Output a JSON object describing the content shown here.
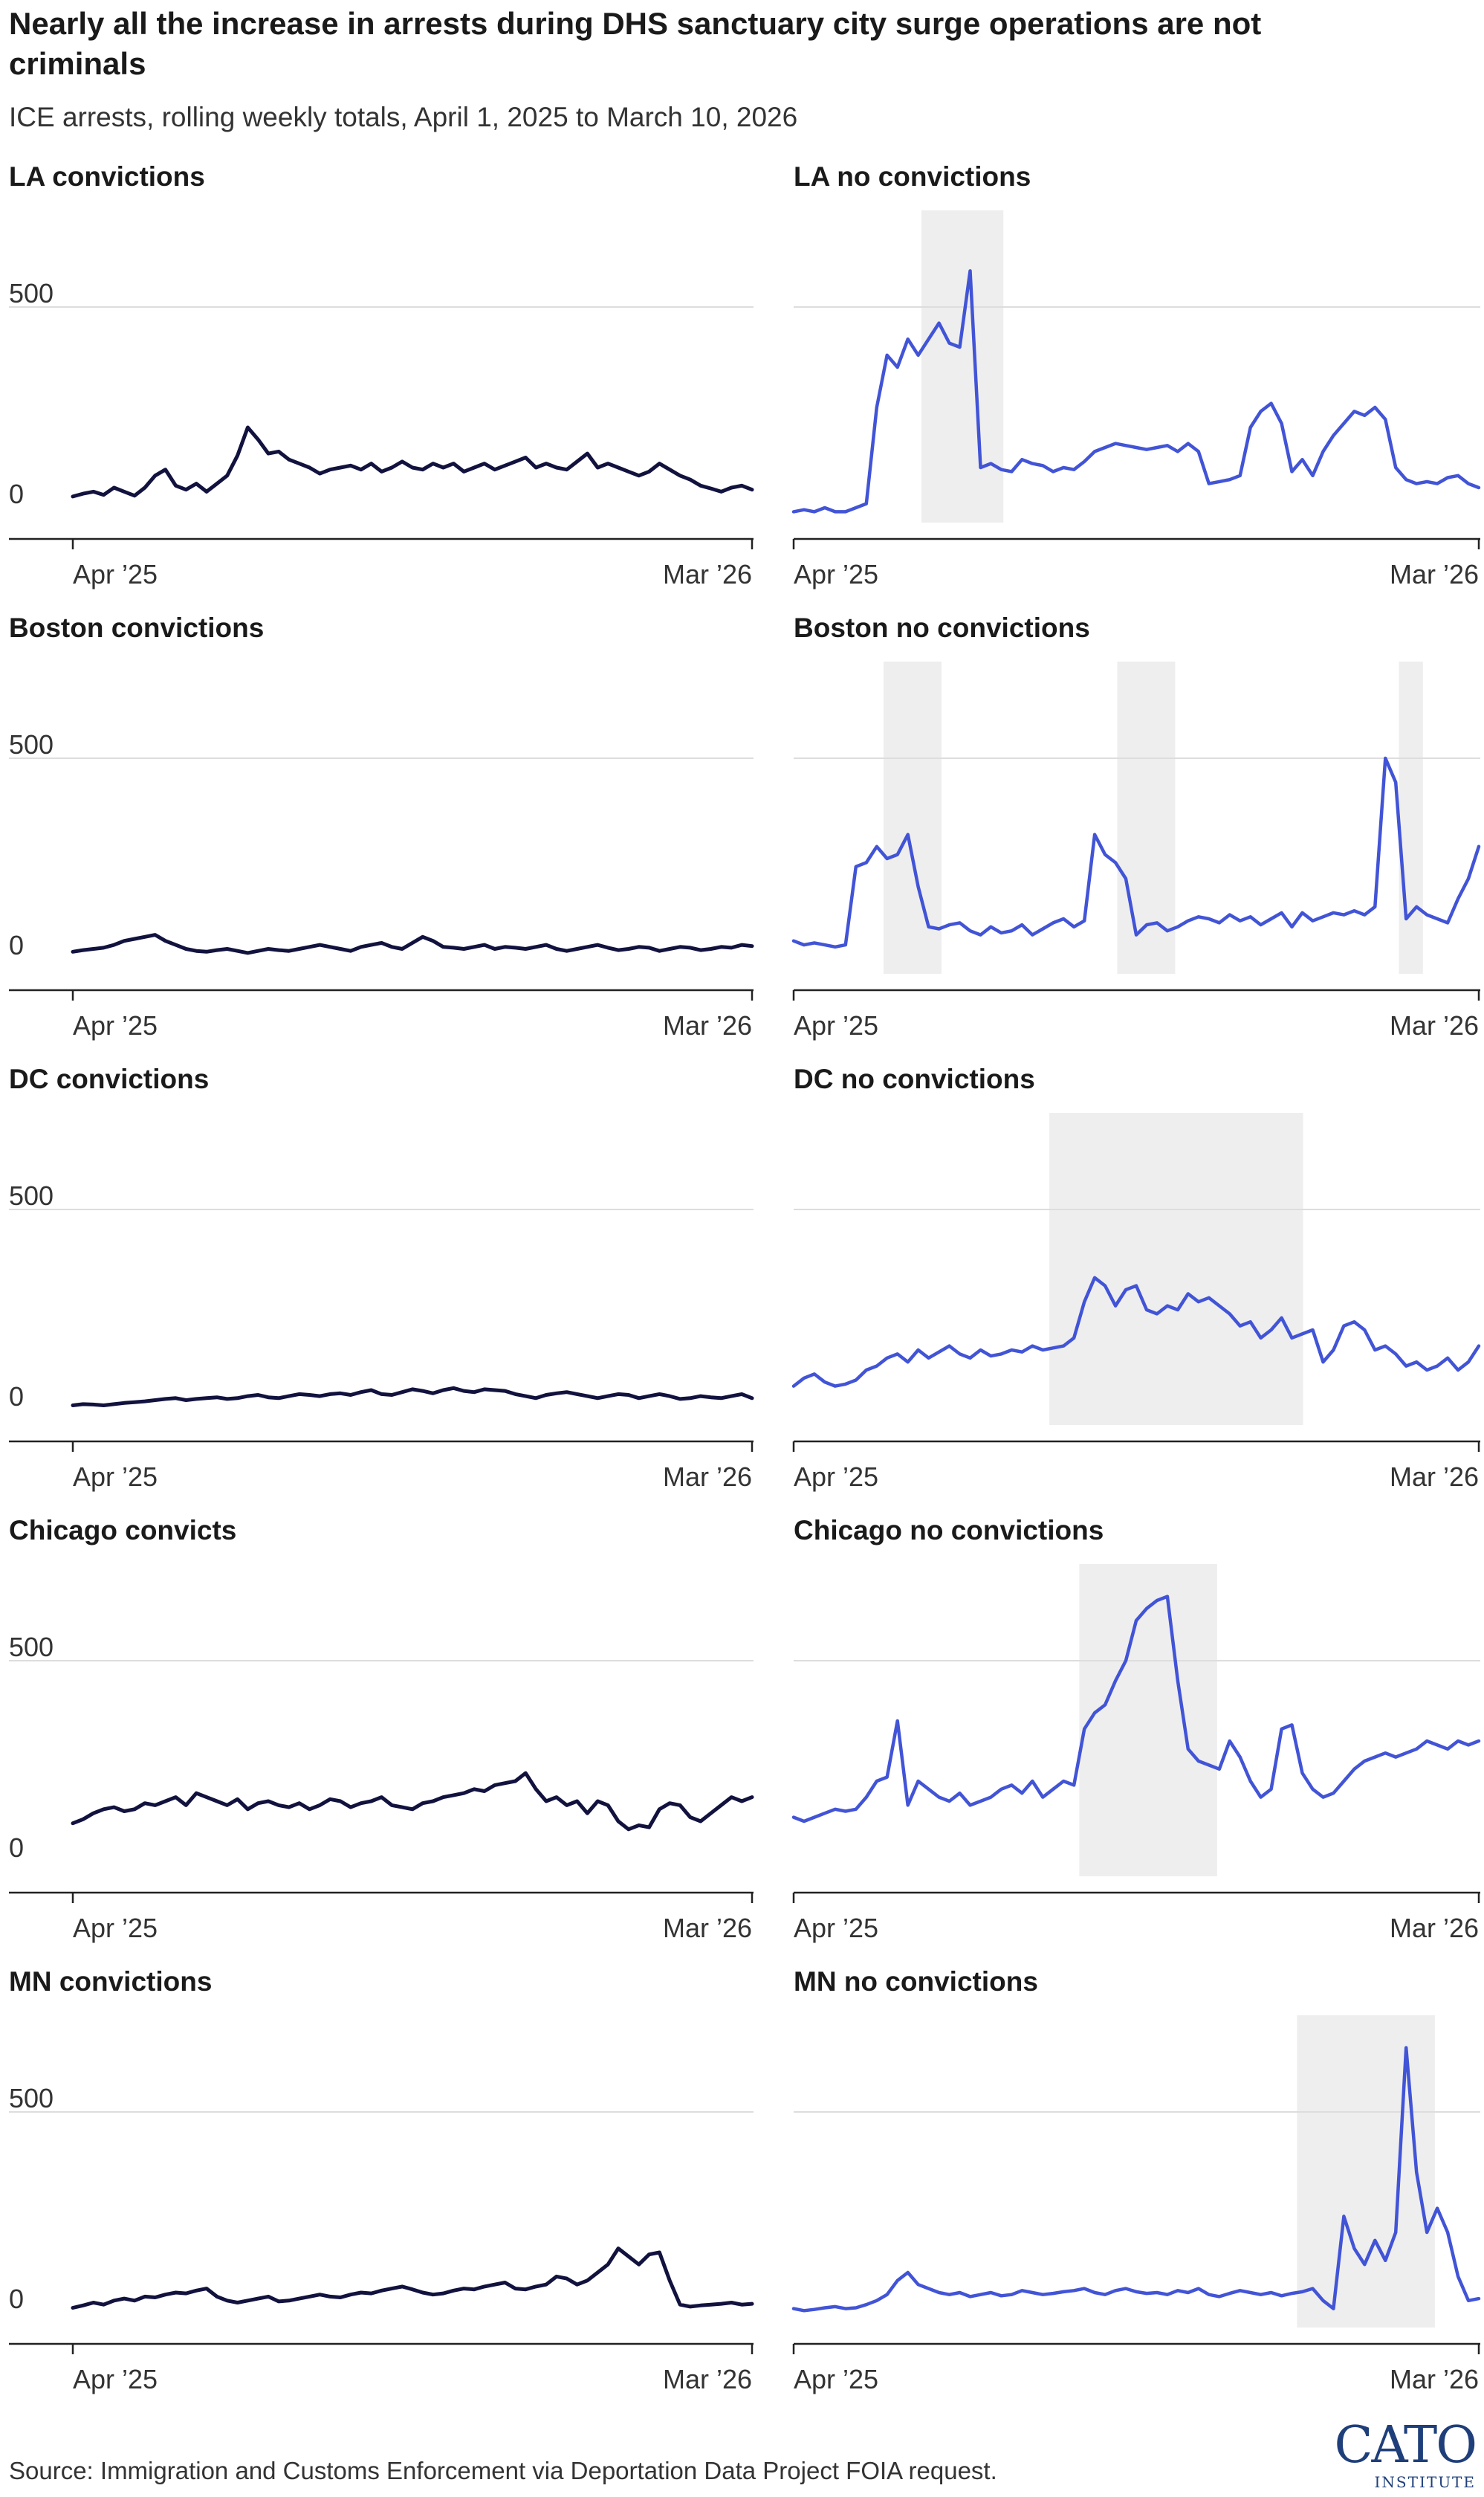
{
  "title": "Nearly all the increase in arrests during DHS sanctuary city surge operations are not criminals",
  "subtitle": "ICE arrests, rolling weekly totals, April 1, 2025 to March 10, 2026",
  "source": "Source: Immigration and Customs Enforcement via Deportation Data Project FOIA request.",
  "logo": {
    "main": "CATO",
    "sub": "INSTITUTE"
  },
  "colors": {
    "convictions": "#12123f",
    "no_convictions": "#4254d6",
    "highlight": "#eeeeee",
    "grid": "#dddddd",
    "axis": "#222222"
  },
  "chart_data": [
    {
      "type": "line",
      "title": "LA convictions",
      "color": "#12123f",
      "ylim": [
        0,
        700
      ],
      "yticks": [
        0,
        500
      ],
      "xticks": [
        "Apr ’25",
        "Mar ’26"
      ],
      "x_range": [
        "2025-04-01",
        "2026-03-10"
      ],
      "highlight": [],
      "series": [
        {
          "values": [
            28,
            35,
            40,
            32,
            50,
            40,
            30,
            50,
            80,
            95,
            55,
            45,
            60,
            40,
            60,
            80,
            130,
            200,
            170,
            135,
            140,
            120,
            110,
            100,
            85,
            95,
            100,
            105,
            95,
            110,
            90,
            100,
            115,
            100,
            95,
            110,
            100,
            110,
            90,
            100,
            110,
            95,
            105,
            115,
            125,
            100,
            110,
            100,
            95,
            115,
            135,
            100,
            110,
            100,
            90,
            80,
            90,
            110,
            95,
            80,
            70,
            55,
            48,
            40,
            50,
            55,
            45
          ]
        }
      ]
    },
    {
      "type": "line",
      "title": "LA no convictions",
      "color": "#4254d6",
      "ylim": [
        0,
        700
      ],
      "yticks": [
        0,
        500
      ],
      "xticks": [
        "Apr ’25",
        "Mar ’26"
      ],
      "x_range": [
        "2025-04-01",
        "2026-03-10"
      ],
      "highlight": [
        [
          "2025-06-04",
          "2025-07-15"
        ]
      ],
      "series": [
        {
          "values": [
            -10,
            -5,
            -10,
            0,
            -10,
            -10,
            0,
            10,
            250,
            380,
            350,
            420,
            380,
            420,
            460,
            410,
            400,
            590,
            100,
            110,
            95,
            90,
            120,
            110,
            105,
            90,
            100,
            95,
            115,
            140,
            150,
            160,
            155,
            150,
            145,
            150,
            155,
            140,
            160,
            140,
            60,
            65,
            70,
            80,
            200,
            240,
            260,
            210,
            90,
            120,
            80,
            140,
            180,
            210,
            240,
            230,
            250,
            220,
            100,
            70,
            60,
            65,
            60,
            75,
            80,
            60,
            50
          ]
        }
      ]
    },
    {
      "type": "line",
      "title": "Boston convictions",
      "color": "#12123f",
      "ylim": [
        0,
        700
      ],
      "yticks": [
        0,
        500
      ],
      "xticks": [
        "Apr ’25",
        "Mar ’26"
      ],
      "x_range": [
        "2025-04-01",
        "2026-03-10"
      ],
      "highlight": [],
      "series": [
        {
          "values": [
            18,
            22,
            25,
            28,
            35,
            45,
            50,
            55,
            60,
            45,
            35,
            25,
            20,
            18,
            22,
            25,
            20,
            15,
            20,
            25,
            22,
            20,
            25,
            30,
            35,
            30,
            25,
            20,
            30,
            35,
            40,
            30,
            25,
            40,
            55,
            45,
            30,
            28,
            25,
            30,
            35,
            25,
            30,
            28,
            25,
            30,
            35,
            25,
            20,
            25,
            30,
            35,
            28,
            22,
            25,
            30,
            28,
            20,
            25,
            30,
            28,
            22,
            25,
            30,
            28,
            35,
            32
          ]
        }
      ]
    },
    {
      "type": "line",
      "title": "Boston no convictions",
      "color": "#4254d6",
      "ylim": [
        0,
        700
      ],
      "yticks": [
        0,
        500
      ],
      "xticks": [
        "Apr ’25",
        "Mar ’26"
      ],
      "x_range": [
        "2025-04-01",
        "2026-03-10"
      ],
      "highlight": [
        [
          "2025-05-16",
          "2025-06-14"
        ],
        [
          "2025-09-10",
          "2025-10-09"
        ],
        [
          "2026-01-29",
          "2026-02-10"
        ]
      ],
      "series": [
        {
          "values": [
            45,
            35,
            40,
            35,
            30,
            35,
            230,
            240,
            280,
            250,
            260,
            310,
            180,
            80,
            75,
            85,
            90,
            70,
            60,
            80,
            65,
            70,
            85,
            60,
            75,
            90,
            100,
            80,
            95,
            310,
            260,
            240,
            200,
            60,
            85,
            90,
            70,
            80,
            95,
            105,
            100,
            90,
            110,
            95,
            105,
            85,
            100,
            115,
            80,
            115,
            95,
            105,
            115,
            110,
            120,
            110,
            130,
            500,
            440,
            100,
            130,
            110,
            100,
            90,
            150,
            200,
            280
          ]
        }
      ]
    },
    {
      "type": "line",
      "title": "DC convictions",
      "color": "#12123f",
      "ylim": [
        0,
        700
      ],
      "yticks": [
        0,
        500
      ],
      "xticks": [
        "Apr ’25",
        "Mar ’26"
      ],
      "x_range": [
        "2025-04-01",
        "2026-03-10"
      ],
      "highlight": [],
      "series": [
        {
          "values": [
            12,
            15,
            14,
            12,
            15,
            18,
            20,
            22,
            25,
            28,
            30,
            25,
            28,
            30,
            32,
            28,
            30,
            35,
            38,
            32,
            30,
            35,
            40,
            38,
            35,
            40,
            42,
            38,
            45,
            50,
            40,
            38,
            45,
            52,
            48,
            42,
            50,
            55,
            48,
            45,
            52,
            50,
            48,
            40,
            35,
            30,
            38,
            42,
            45,
            40,
            35,
            30,
            35,
            40,
            38,
            30,
            35,
            40,
            35,
            28,
            30,
            35,
            32,
            30,
            35,
            40,
            30
          ]
        }
      ]
    },
    {
      "type": "line",
      "title": "DC no convictions",
      "color": "#4254d6",
      "ylim": [
        0,
        700
      ],
      "yticks": [
        0,
        500
      ],
      "xticks": [
        "Apr ’25",
        "Mar ’26"
      ],
      "x_range": [
        "2025-04-01",
        "2026-03-10"
      ],
      "highlight": [
        [
          "2025-08-07",
          "2025-12-12"
        ]
      ],
      "series": [
        {
          "values": [
            60,
            80,
            90,
            70,
            60,
            65,
            75,
            100,
            110,
            130,
            140,
            120,
            150,
            130,
            145,
            160,
            140,
            130,
            150,
            135,
            140,
            150,
            145,
            160,
            150,
            155,
            160,
            180,
            270,
            330,
            310,
            260,
            300,
            310,
            250,
            240,
            260,
            250,
            290,
            270,
            280,
            260,
            240,
            210,
            220,
            180,
            200,
            230,
            180,
            190,
            200,
            120,
            150,
            210,
            220,
            200,
            150,
            160,
            140,
            110,
            120,
            100,
            110,
            130,
            100,
            120,
            160
          ]
        }
      ]
    },
    {
      "type": "line",
      "title": "Chicago convicts",
      "color": "#12123f",
      "ylim": [
        0,
        700
      ],
      "yticks": [
        0,
        500
      ],
      "xticks": [
        "Apr ’25",
        "Mar ’26"
      ],
      "x_range": [
        "2025-04-01",
        "2026-03-10"
      ],
      "highlight": [],
      "series": [
        {
          "values": [
            95,
            105,
            120,
            130,
            135,
            125,
            130,
            145,
            140,
            150,
            160,
            140,
            170,
            160,
            150,
            140,
            155,
            130,
            145,
            150,
            140,
            135,
            145,
            130,
            140,
            155,
            150,
            135,
            145,
            150,
            160,
            140,
            135,
            130,
            145,
            150,
            160,
            165,
            170,
            180,
            175,
            190,
            195,
            200,
            220,
            180,
            150,
            160,
            140,
            150,
            120,
            150,
            140,
            100,
            80,
            90,
            85,
            130,
            145,
            140,
            110,
            100,
            120,
            140,
            160,
            150,
            160
          ]
        }
      ]
    },
    {
      "type": "line",
      "title": "Chicago no convictions",
      "color": "#4254d6",
      "ylim": [
        0,
        700
      ],
      "yticks": [
        0,
        500
      ],
      "xticks": [
        "Apr ’25",
        "Mar ’26"
      ],
      "x_range": [
        "2025-04-01",
        "2026-03-10"
      ],
      "highlight": [
        [
          "2025-08-22",
          "2025-10-30"
        ]
      ],
      "series": [
        {
          "values": [
            110,
            100,
            110,
            120,
            130,
            125,
            130,
            160,
            200,
            210,
            350,
            140,
            200,
            180,
            160,
            150,
            170,
            140,
            150,
            160,
            180,
            190,
            170,
            200,
            160,
            180,
            200,
            190,
            330,
            370,
            390,
            450,
            500,
            600,
            630,
            650,
            660,
            450,
            280,
            250,
            240,
            230,
            300,
            260,
            200,
            160,
            180,
            330,
            340,
            220,
            180,
            160,
            170,
            200,
            230,
            250,
            260,
            270,
            260,
            270,
            280,
            300,
            290,
            280,
            300,
            290,
            300
          ]
        }
      ]
    },
    {
      "type": "line",
      "title": "MN convictions",
      "color": "#12123f",
      "ylim": [
        0,
        700
      ],
      "yticks": [
        0,
        500
      ],
      "xticks": [
        "Apr ’25",
        "Mar ’26"
      ],
      "x_range": [
        "2025-04-01",
        "2026-03-10"
      ],
      "highlight": [],
      "series": [
        {
          "values": [
            12,
            18,
            25,
            20,
            30,
            35,
            30,
            40,
            38,
            45,
            50,
            48,
            55,
            60,
            40,
            30,
            25,
            30,
            35,
            40,
            28,
            30,
            35,
            40,
            45,
            40,
            38,
            45,
            50,
            48,
            55,
            60,
            65,
            58,
            50,
            45,
            48,
            55,
            60,
            58,
            65,
            70,
            75,
            60,
            58,
            65,
            70,
            90,
            85,
            70,
            80,
            100,
            120,
            160,
            140,
            120,
            145,
            150,
            80,
            20,
            15,
            18,
            20,
            22,
            25,
            20,
            22
          ]
        }
      ]
    },
    {
      "type": "line",
      "title": "MN no convictions",
      "color": "#4254d6",
      "ylim": [
        0,
        700
      ],
      "yticks": [
        0,
        500
      ],
      "xticks": [
        "Apr ’25",
        "Mar ’26"
      ],
      "x_range": [
        "2025-04-01",
        "2026-03-10"
      ],
      "highlight": [
        [
          "2025-12-09",
          "2026-02-16"
        ]
      ],
      "series": [
        {
          "values": [
            10,
            5,
            8,
            12,
            15,
            10,
            12,
            20,
            30,
            45,
            80,
            100,
            70,
            60,
            50,
            45,
            50,
            40,
            45,
            50,
            42,
            45,
            55,
            50,
            45,
            48,
            52,
            55,
            60,
            50,
            45,
            55,
            60,
            52,
            48,
            50,
            45,
            55,
            50,
            60,
            45,
            40,
            48,
            55,
            50,
            45,
            50,
            42,
            48,
            52,
            60,
            30,
            10,
            240,
            160,
            120,
            180,
            130,
            200,
            660,
            350,
            200,
            260,
            200,
            90,
            30,
            35
          ]
        }
      ]
    }
  ]
}
